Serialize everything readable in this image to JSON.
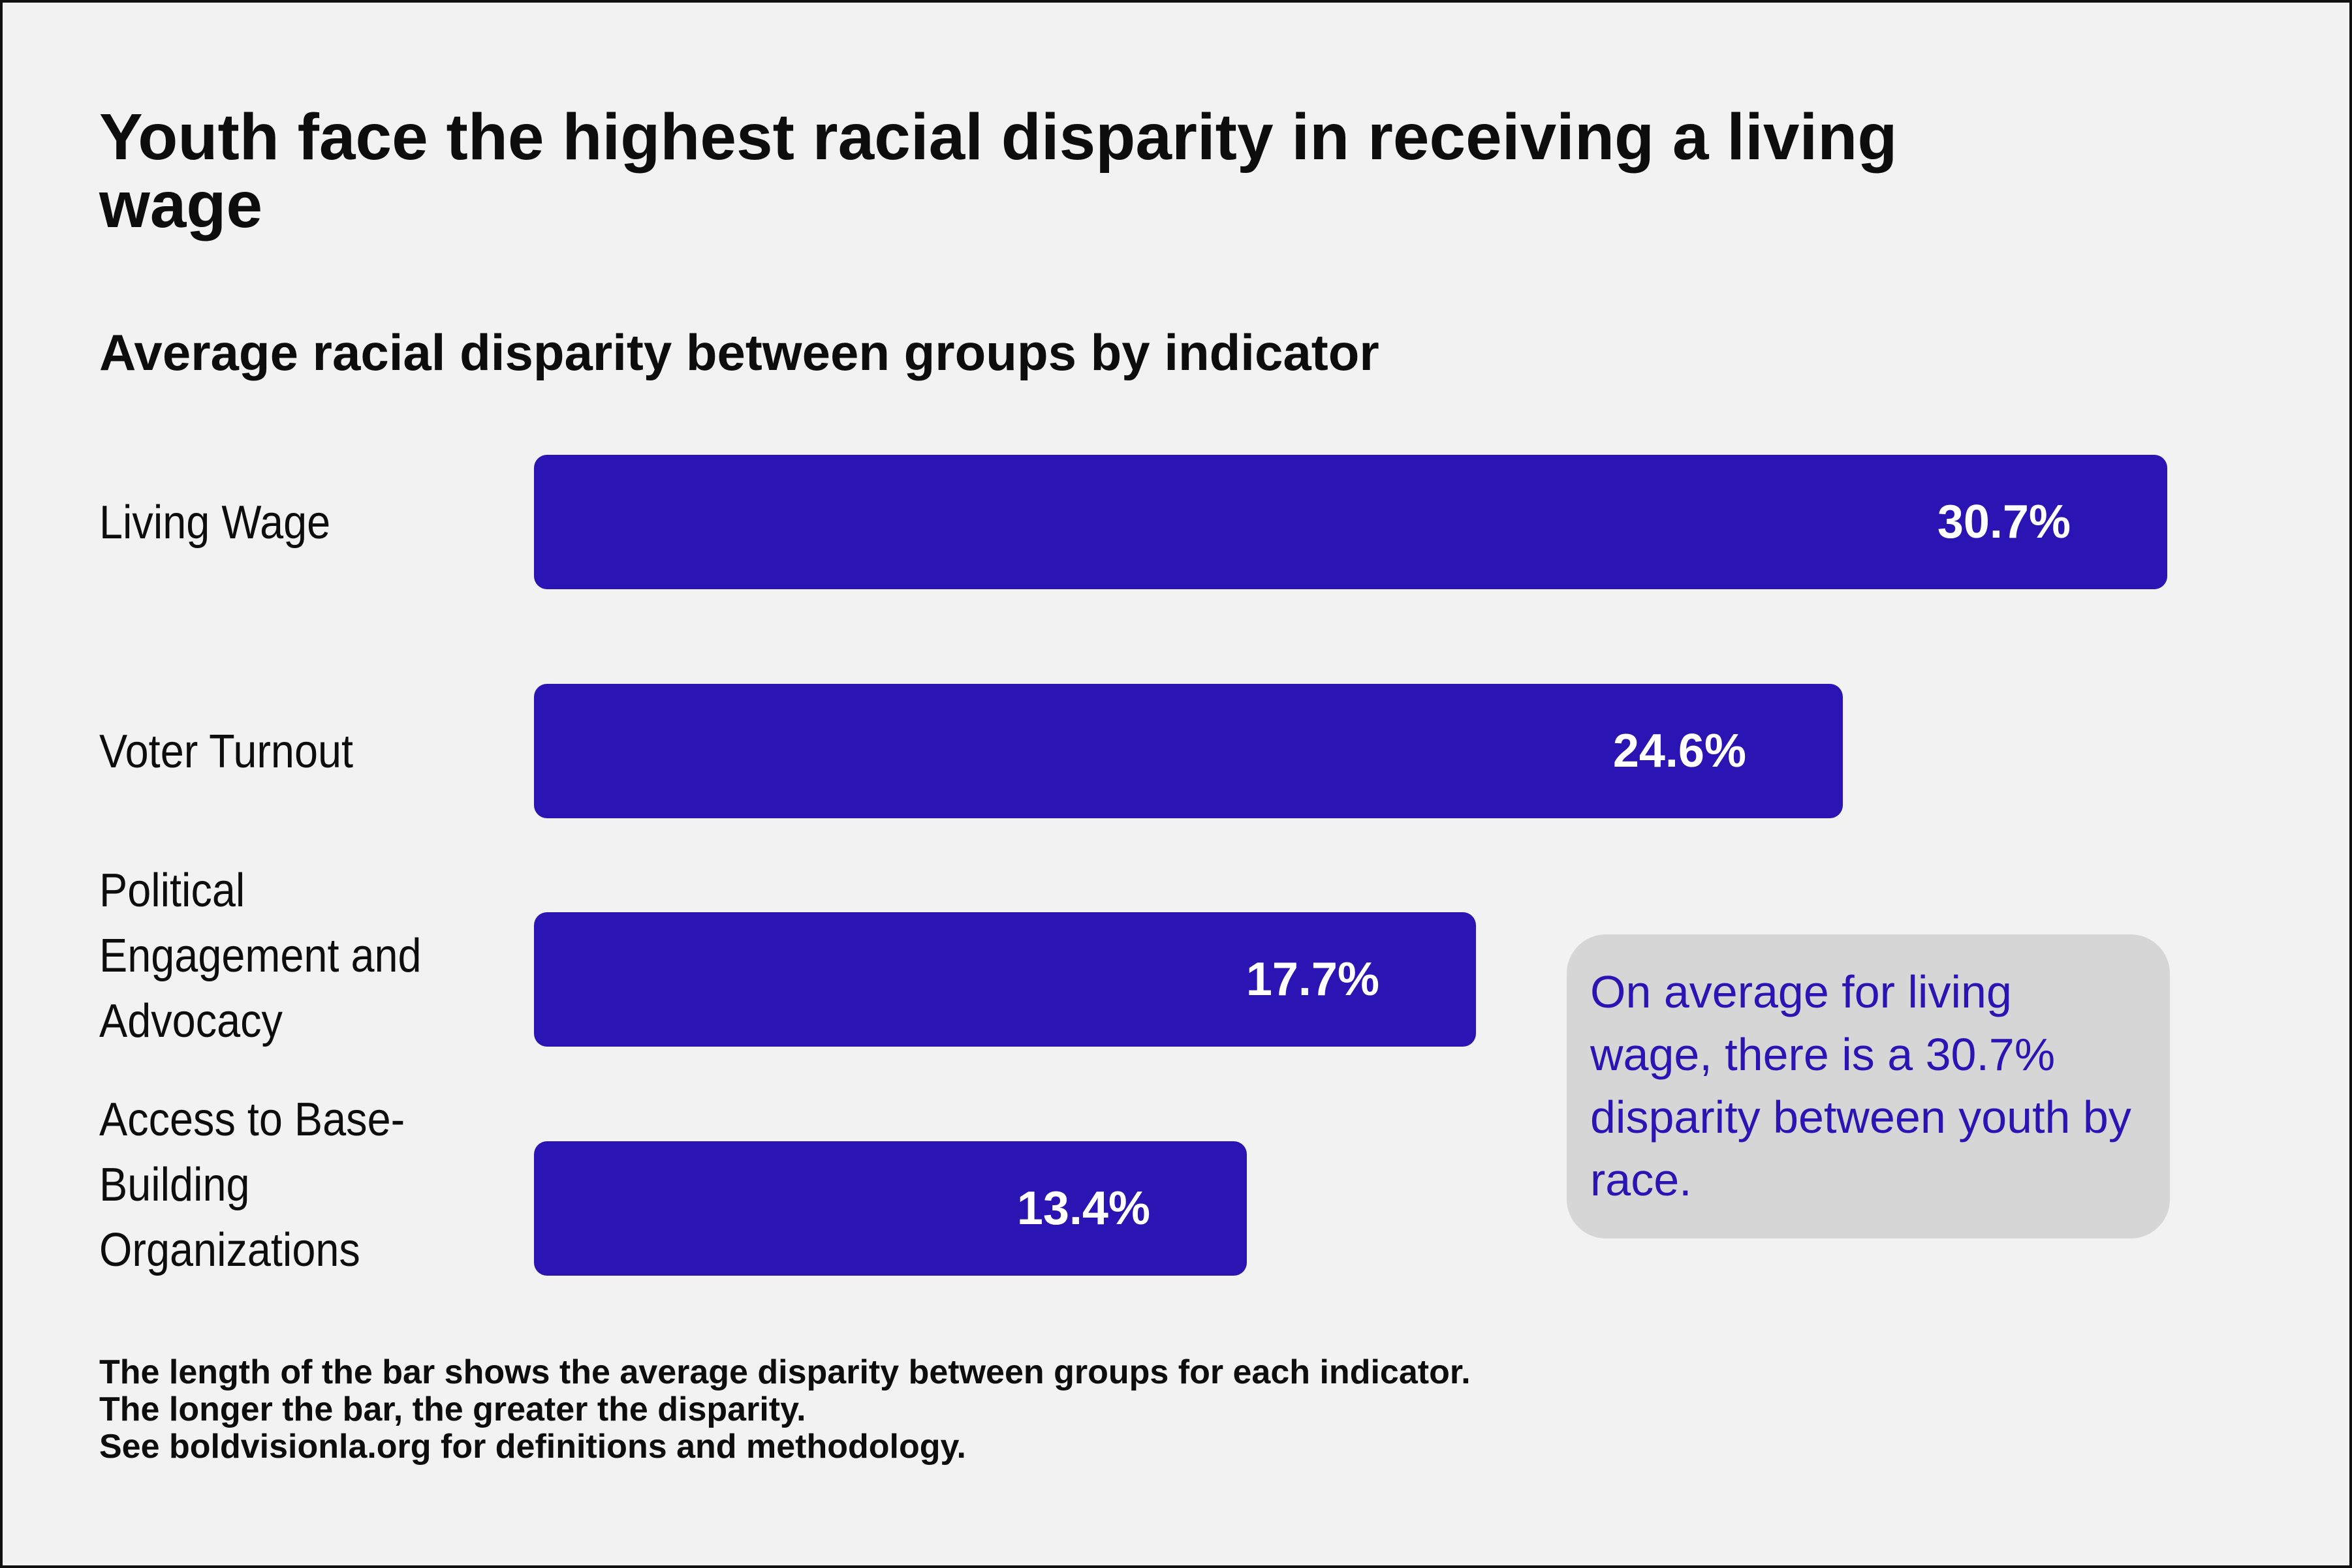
{
  "title": "Youth face the highest racial disparity in receiving a living wage",
  "subtitle": "Average racial disparity between groups by indicator",
  "chart_data": {
    "type": "bar",
    "orientation": "horizontal",
    "categories": [
      "Living Wage",
      "Voter Turnout",
      "Political Engagement and Advocacy",
      "Access to Base-Building Organizations"
    ],
    "values": [
      30.7,
      24.6,
      17.7,
      13.4
    ],
    "value_labels": [
      "30.7%",
      "24.6%",
      "17.7%",
      "13.4%"
    ],
    "unit": "%",
    "bar_color": "#2b14b4",
    "grid": false
  },
  "callout": "On average for living wage, there is a 30.7% disparity between youth by race.",
  "footnote": {
    "line1": "The length of the bar shows the average disparity between groups for each indicator.",
    "line2": "The longer the bar, the greater the disparity.",
    "line3": "See boldvisionla.org for definitions and methodology."
  },
  "colors": {
    "background": "#f2f2f2",
    "bar": "#2b14b4",
    "callout_bg": "#d6d6d6",
    "callout_text": "#2b14b4"
  }
}
